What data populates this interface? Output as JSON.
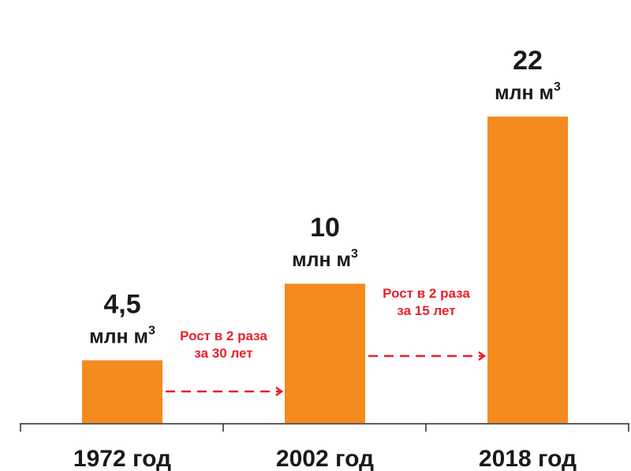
{
  "chart_data": {
    "type": "bar",
    "categories": [
      "1972 год",
      "2002 год",
      "2018 год"
    ],
    "values": [
      4.5,
      10,
      22
    ],
    "value_labels": [
      "4,5",
      "10",
      "22"
    ],
    "unit_text": "млн м",
    "unit_superscript": "3",
    "title": "",
    "xlabel": "",
    "ylabel": "",
    "ylim": [
      0,
      22
    ],
    "grid": false,
    "legend": "none",
    "bar_color": "#F58A1F",
    "annotations": [
      {
        "from": 0,
        "to": 1,
        "lines": [
          "Рост в 2 раза",
          "за 30 лет"
        ]
      },
      {
        "from": 1,
        "to": 2,
        "lines": [
          "Рост в 2 раза",
          "за 15 лет"
        ]
      }
    ],
    "annotation_color": "#E8202A"
  }
}
